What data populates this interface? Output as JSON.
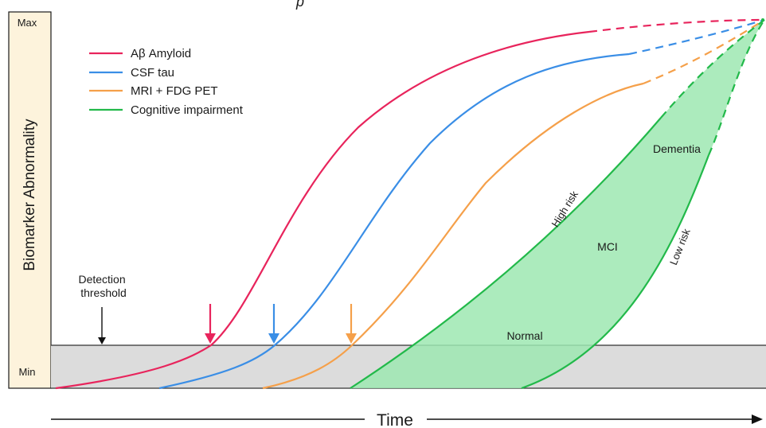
{
  "header_fragment": "p",
  "y_axis": {
    "label": "Biomarker Abnormality",
    "max_label": "Max",
    "min_label": "Min"
  },
  "x_axis": {
    "label": "Time"
  },
  "legend": [
    {
      "label": "Aβ Amyloid",
      "color": "#e8245c"
    },
    {
      "label": "CSF tau",
      "color": "#3a8ee6"
    },
    {
      "label": "MRI + FDG PET",
      "color": "#f5a04a"
    },
    {
      "label": "Cognitive impairment",
      "color": "#22b94a"
    }
  ],
  "annotations": {
    "detection_threshold": "Detection\nthreshold",
    "normal": "Normal",
    "mci": "MCI",
    "dementia": "Dementia",
    "high_risk": "High risk",
    "low_risk": "Low risk"
  },
  "colors": {
    "axis_panel": "#fdf3dc",
    "threshold_band": "#dcdcdc",
    "cognitive_fill": "#9de8b1"
  }
}
